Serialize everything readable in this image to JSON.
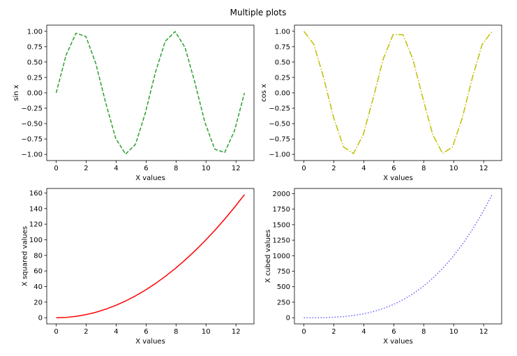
{
  "figure": {
    "title": "Multiple plots"
  },
  "chart_data": [
    {
      "type": "line",
      "xlabel": "X values",
      "ylabel": "sin x",
      "xlim": [
        -0.63,
        13.2
      ],
      "ylim": [
        -1.1,
        1.1
      ],
      "xticks": [
        0,
        2,
        4,
        6,
        8,
        10,
        12
      ],
      "yticks": [
        -1.0,
        -0.75,
        -0.5,
        -0.25,
        0.0,
        0.25,
        0.5,
        0.75,
        1.0
      ],
      "ytick_labels": [
        "−1.00",
        "−0.75",
        "−0.50",
        "−0.25",
        "0.00",
        "0.25",
        "0.50",
        "0.75",
        "1.00"
      ],
      "grid": false,
      "series": [
        {
          "color": "#2ca02c",
          "linestyle": "dashed",
          "x": [
            0,
            0.6614,
            1.3228,
            1.9842,
            2.6456,
            3.307,
            3.9684,
            4.6298,
            5.2912,
            5.9526,
            6.614,
            7.2754,
            7.9368,
            8.5982,
            9.2596,
            9.921,
            10.5824,
            11.2438,
            11.9052,
            12.5664
          ],
          "y": [
            0.0,
            0.614,
            0.969,
            0.916,
            0.476,
            -0.165,
            -0.737,
            -0.996,
            -0.837,
            -0.325,
            0.325,
            0.837,
            0.996,
            0.737,
            0.165,
            -0.476,
            -0.916,
            -0.969,
            -0.614,
            0.0
          ]
        }
      ]
    },
    {
      "type": "line",
      "xlabel": "X values",
      "ylabel": "cos x",
      "xlim": [
        -0.63,
        13.2
      ],
      "ylim": [
        -1.1,
        1.1
      ],
      "xticks": [
        0,
        2,
        4,
        6,
        8,
        10,
        12
      ],
      "yticks": [
        -1.0,
        -0.75,
        -0.5,
        -0.25,
        0.0,
        0.25,
        0.5,
        0.75,
        1.0
      ],
      "ytick_labels": [
        "−1.00",
        "−0.75",
        "−0.50",
        "−0.25",
        "0.00",
        "0.25",
        "0.50",
        "0.75",
        "1.00"
      ],
      "grid": false,
      "series": [
        {
          "color": "#bfbf00",
          "linestyle": "dashdot",
          "x": [
            0,
            0.6614,
            1.3228,
            1.9842,
            2.6456,
            3.307,
            3.9684,
            4.6298,
            5.2912,
            5.9526,
            6.614,
            7.2754,
            7.9368,
            8.5982,
            9.2596,
            9.921,
            10.5824,
            11.2438,
            11.9052,
            12.5664
          ],
          "y": [
            1.0,
            0.789,
            0.245,
            -0.401,
            -0.879,
            -0.986,
            -0.677,
            -0.083,
            0.546,
            0.946,
            0.946,
            0.546,
            -0.083,
            -0.677,
            -0.986,
            -0.879,
            -0.401,
            0.245,
            0.789,
            1.0
          ]
        }
      ]
    },
    {
      "type": "line",
      "xlabel": "X values",
      "ylabel": "X squared values",
      "xlim": [
        -0.63,
        13.2
      ],
      "ylim": [
        -7.9,
        165.8
      ],
      "xticks": [
        0,
        2,
        4,
        6,
        8,
        10,
        12
      ],
      "yticks": [
        0,
        20,
        40,
        60,
        80,
        100,
        120,
        140,
        160
      ],
      "ytick_labels": [
        "0",
        "20",
        "40",
        "60",
        "80",
        "100",
        "120",
        "140",
        "160"
      ],
      "grid": false,
      "series": [
        {
          "color": "#ff0000",
          "linestyle": "solid",
          "x": [
            0,
            0.6614,
            1.3228,
            1.9842,
            2.6456,
            3.307,
            3.9684,
            4.6298,
            5.2912,
            5.9526,
            6.614,
            7.2754,
            7.9368,
            8.5982,
            9.2596,
            9.921,
            10.5824,
            11.2438,
            11.9052,
            12.5664
          ],
          "y": [
            0.0,
            0.44,
            1.75,
            3.94,
            7.0,
            10.94,
            15.75,
            21.44,
            28.0,
            35.43,
            43.75,
            52.93,
            62.99,
            73.93,
            85.74,
            98.43,
            111.99,
            126.42,
            141.73,
            157.91
          ]
        }
      ]
    },
    {
      "type": "line",
      "xlabel": "X values",
      "ylabel": "X cubed values",
      "xlim": [
        -0.63,
        13.2
      ],
      "ylim": [
        -99.2,
        2083.6
      ],
      "xticks": [
        0,
        2,
        4,
        6,
        8,
        10,
        12
      ],
      "yticks": [
        0,
        250,
        500,
        750,
        1000,
        1250,
        1500,
        1750,
        2000
      ],
      "ytick_labels": [
        "0",
        "250",
        "500",
        "750",
        "1000",
        "1250",
        "1500",
        "1750",
        "2000"
      ],
      "grid": false,
      "series": [
        {
          "color": "#6666ff",
          "linestyle": "dotted",
          "x": [
            0,
            0.6614,
            1.3228,
            1.9842,
            2.6456,
            3.307,
            3.9684,
            4.6298,
            5.2912,
            5.9526,
            6.614,
            7.2754,
            7.9368,
            8.5982,
            9.2596,
            9.921,
            10.5824,
            11.2438,
            11.9052,
            12.5664
          ],
          "y": [
            0.0,
            0.29,
            2.31,
            7.81,
            18.52,
            36.17,
            62.49,
            99.24,
            148.14,
            210.92,
            289.35,
            385.12,
            499.97,
            635.66,
            793.91,
            976.46,
            1185.09,
            1421.48,
            1687.38,
            1984.41
          ]
        }
      ]
    }
  ]
}
